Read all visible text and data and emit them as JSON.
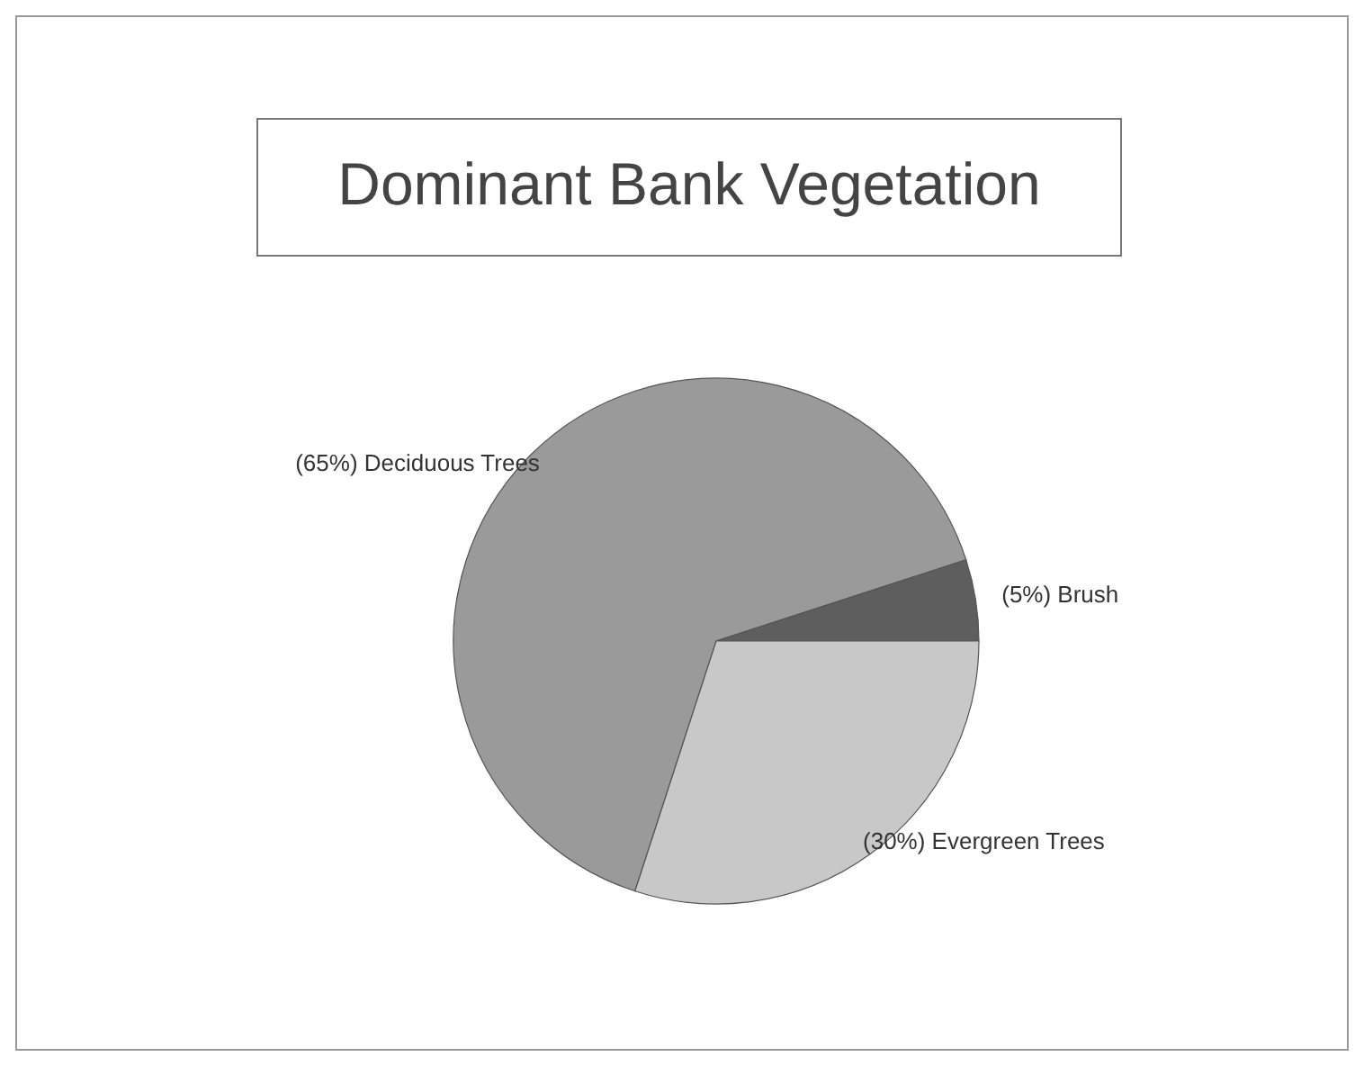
{
  "chart_data": {
    "type": "pie",
    "title": "Dominant Bank Vegetation",
    "categories": [
      "Deciduous Trees",
      "Brush",
      "Evergreen Trees"
    ],
    "values": [
      65,
      5,
      30
    ],
    "value_labels": [
      "(65%)",
      "(5%)",
      "(30%)"
    ],
    "colors": [
      "#9a9a9a",
      "#5e5e5e",
      "#c8c8c8"
    ]
  }
}
